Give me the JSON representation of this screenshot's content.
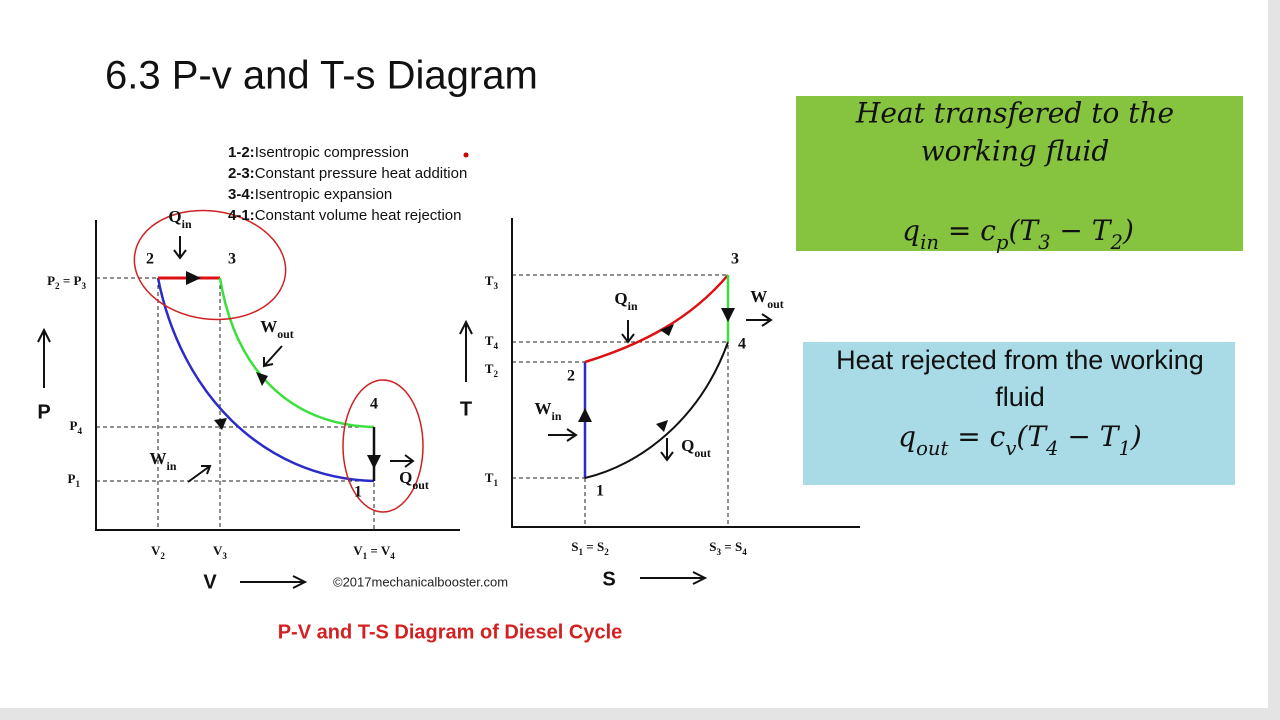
{
  "title": "6.3 P-v and T-s Diagram",
  "legend": [
    [
      "1-2:",
      "Isentropic compression"
    ],
    [
      "2-3:",
      "Constant pressure heat addition"
    ],
    [
      "3-4:",
      "Isentropic expansion"
    ],
    [
      "4-1:",
      "Constant volume heat rejection"
    ]
  ],
  "pv": {
    "y_label": "P",
    "x_label": "V",
    "credit": "©2017mechanicalbooster.com",
    "yticks": [
      [
        "P",
        "2",
        " = P",
        "3"
      ],
      [
        "P",
        "4"
      ],
      [
        "P",
        "1"
      ]
    ],
    "xticks": [
      [
        "V",
        "2"
      ],
      [
        "V",
        "3"
      ],
      [
        "V",
        "1",
        " = V",
        "4"
      ]
    ],
    "states": [
      "2",
      "3",
      "4",
      "1"
    ],
    "heat_work": [
      [
        "Q",
        "in"
      ],
      [
        "W",
        "out"
      ],
      [
        "W",
        "in"
      ],
      [
        "Q",
        "out"
      ]
    ]
  },
  "ts": {
    "y_label": "T",
    "x_label": "S",
    "yticks": [
      [
        "T",
        "3"
      ],
      [
        "T",
        "4"
      ],
      [
        "T",
        "2"
      ],
      [
        "T",
        "1"
      ]
    ],
    "xticks": [
      [
        "S",
        "1",
        " = S",
        "2"
      ],
      [
        "S",
        "3",
        " = S",
        "4"
      ]
    ],
    "states": [
      "3",
      "4",
      "2",
      "1"
    ],
    "heat_work": [
      [
        "Q",
        "in"
      ],
      [
        "W",
        "out"
      ],
      [
        "W",
        "in"
      ],
      [
        "Q",
        "out"
      ]
    ]
  },
  "caption": "P-V and T-S Diagram of Diesel Cycle",
  "boxes": [
    {
      "lines": [
        "Heat transfered to the",
        "working fluid"
      ],
      "formula": [
        "q",
        "in",
        " = c",
        "p",
        "(T",
        "3",
        " − T",
        "2",
        ")"
      ]
    },
    {
      "lines": [
        "Heat rejected from the working",
        "fluid"
      ],
      "formula": [
        "q",
        "out",
        " = c",
        "v",
        "(T",
        "4",
        " − T",
        "1",
        ")"
      ]
    }
  ]
}
